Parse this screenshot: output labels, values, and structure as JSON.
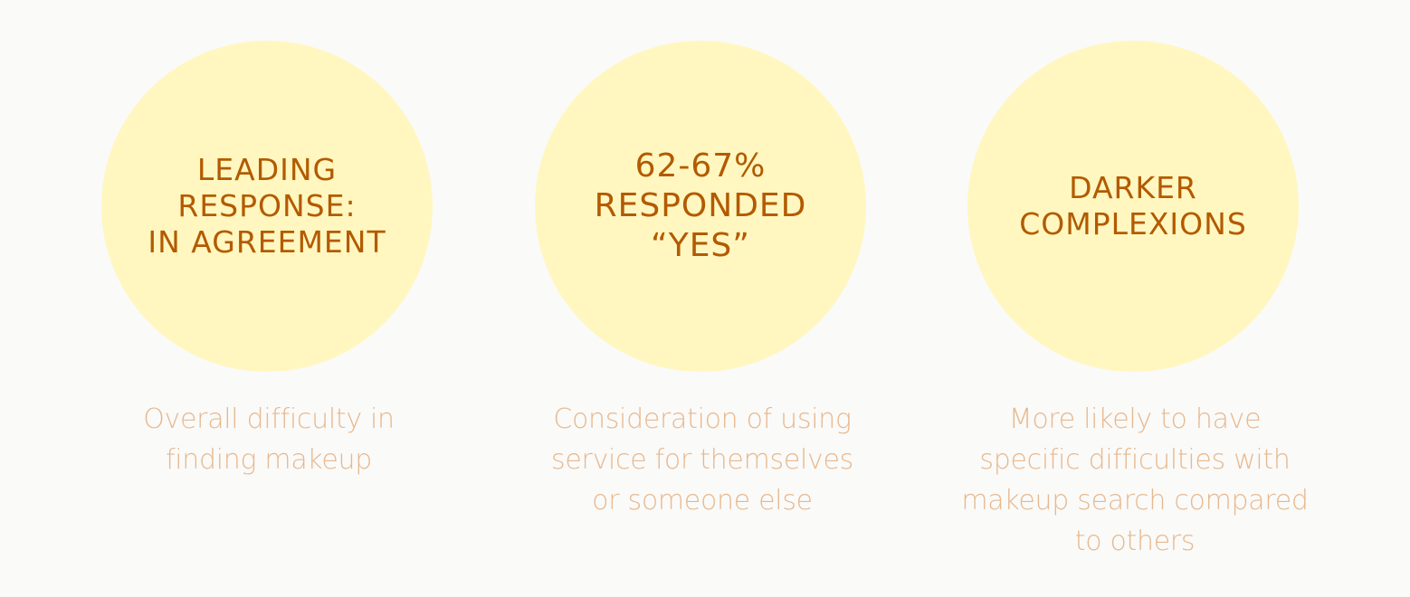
{
  "stats": [
    {
      "headline_lines": [
        "LEADING",
        "RESPONSE:",
        "IN AGREEMENT"
      ],
      "caption_lines": [
        "Overall difficulty in",
        "finding makeup"
      ]
    },
    {
      "headline_lines": [
        "62-67%",
        "RESPONDED",
        "“YES”"
      ],
      "caption_lines": [
        "Consideration of using",
        "service for themselves",
        "or someone else"
      ]
    },
    {
      "headline_lines": [
        "DARKER",
        "COMPLEXIONS"
      ],
      "caption_lines": [
        "More likely to have",
        "specific difficulties with",
        "makeup search compared",
        "to others"
      ]
    }
  ],
  "colors": {
    "background": "#fafaf9",
    "circle_fill": "#fff7bf",
    "headline_text": "#b35a00",
    "caption_text": "#e7b98e"
  }
}
